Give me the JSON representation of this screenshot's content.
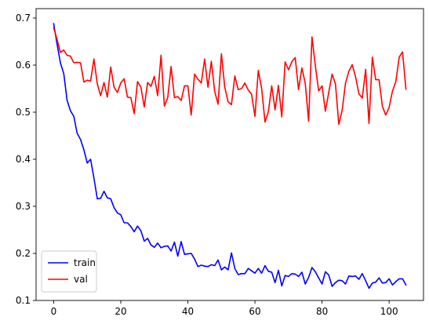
{
  "chart_data": {
    "type": "line",
    "title": "",
    "xlabel": "",
    "ylabel": "",
    "xlim": [
      -5.25,
      110.25
    ],
    "ylim": [
      0.1,
      0.72
    ],
    "x_ticks": [
      0,
      20,
      40,
      60,
      80,
      100
    ],
    "y_ticks": [
      0.1,
      0.2,
      0.3,
      0.4,
      0.5,
      0.6,
      0.7
    ],
    "grid": false,
    "legend_position": "lower-left",
    "x": [
      0,
      1,
      2,
      3,
      4,
      5,
      6,
      7,
      8,
      9,
      10,
      11,
      12,
      13,
      14,
      15,
      16,
      17,
      18,
      19,
      20,
      21,
      22,
      23,
      24,
      25,
      26,
      27,
      28,
      29,
      30,
      31,
      32,
      33,
      34,
      35,
      36,
      37,
      38,
      39,
      40,
      41,
      42,
      43,
      44,
      45,
      46,
      47,
      48,
      49,
      50,
      51,
      52,
      53,
      54,
      55,
      56,
      57,
      58,
      59,
      60,
      61,
      62,
      63,
      64,
      65,
      66,
      67,
      68,
      69,
      70,
      71,
      72,
      73,
      74,
      75,
      76,
      77,
      78,
      79,
      80,
      81,
      82,
      83,
      84,
      85,
      86,
      87,
      88,
      89,
      90,
      91,
      92,
      93,
      94,
      95,
      96,
      97,
      98,
      99,
      100,
      101,
      102,
      103,
      104,
      105
    ],
    "series": [
      {
        "name": "train",
        "color": "#0000ff",
        "values": [
          0.688,
          0.645,
          0.605,
          0.582,
          0.525,
          0.503,
          0.491,
          0.455,
          0.442,
          0.42,
          0.392,
          0.4,
          0.36,
          0.316,
          0.317,
          0.332,
          0.318,
          0.316,
          0.297,
          0.286,
          0.282,
          0.265,
          0.265,
          0.257,
          0.246,
          0.258,
          0.248,
          0.226,
          0.232,
          0.218,
          0.213,
          0.222,
          0.212,
          0.215,
          0.216,
          0.205,
          0.224,
          0.194,
          0.225,
          0.198,
          0.199,
          0.2,
          0.188,
          0.172,
          0.175,
          0.173,
          0.172,
          0.176,
          0.174,
          0.186,
          0.165,
          0.171,
          0.165,
          0.201,
          0.168,
          0.155,
          0.157,
          0.157,
          0.168,
          0.163,
          0.158,
          0.168,
          0.158,
          0.174,
          0.162,
          0.16,
          0.138,
          0.164,
          0.131,
          0.153,
          0.151,
          0.157,
          0.156,
          0.151,
          0.16,
          0.135,
          0.149,
          0.17,
          0.161,
          0.148,
          0.135,
          0.161,
          0.154,
          0.13,
          0.138,
          0.143,
          0.142,
          0.135,
          0.152,
          0.151,
          0.152,
          0.145,
          0.157,
          0.142,
          0.126,
          0.137,
          0.139,
          0.148,
          0.137,
          0.138,
          0.146,
          0.133,
          0.14,
          0.146,
          0.146,
          0.133
        ]
      },
      {
        "name": "val",
        "color": "#ff0000",
        "values": [
          0.679,
          0.655,
          0.627,
          0.632,
          0.621,
          0.619,
          0.605,
          0.606,
          0.605,
          0.564,
          0.568,
          0.566,
          0.613,
          0.56,
          0.535,
          0.563,
          0.532,
          0.596,
          0.553,
          0.542,
          0.562,
          0.571,
          0.532,
          0.531,
          0.497,
          0.565,
          0.553,
          0.511,
          0.563,
          0.555,
          0.576,
          0.535,
          0.621,
          0.513,
          0.531,
          0.597,
          0.531,
          0.533,
          0.525,
          0.556,
          0.556,
          0.494,
          0.581,
          0.57,
          0.562,
          0.613,
          0.553,
          0.608,
          0.544,
          0.517,
          0.624,
          0.553,
          0.522,
          0.516,
          0.577,
          0.548,
          0.55,
          0.562,
          0.547,
          0.538,
          0.491,
          0.589,
          0.55,
          0.479,
          0.501,
          0.556,
          0.505,
          0.557,
          0.49,
          0.607,
          0.59,
          0.607,
          0.616,
          0.548,
          0.594,
          0.561,
          0.481,
          0.66,
          0.599,
          0.545,
          0.556,
          0.502,
          0.542,
          0.581,
          0.56,
          0.474,
          0.504,
          0.562,
          0.587,
          0.601,
          0.575,
          0.539,
          0.53,
          0.591,
          0.476,
          0.617,
          0.569,
          0.569,
          0.512,
          0.494,
          0.51,
          0.545,
          0.565,
          0.617,
          0.628,
          0.549
        ]
      }
    ]
  }
}
